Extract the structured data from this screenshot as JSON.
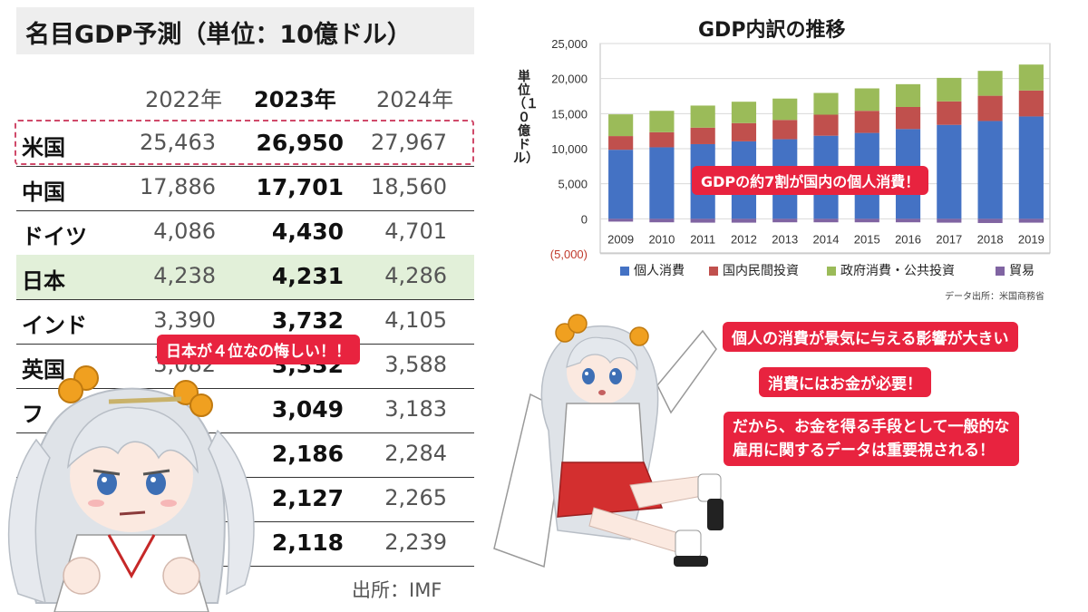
{
  "table": {
    "title": "名目GDP予測（単位：10億ドル）",
    "headers": [
      "2022年",
      "2023年",
      "2024年"
    ],
    "rows": [
      {
        "country": "米国",
        "v2022": "25,463",
        "v2023": "26,950",
        "v2024": "27,967"
      },
      {
        "country": "中国",
        "v2022": "17,886",
        "v2023": "17,701",
        "v2024": "18,560"
      },
      {
        "country": "ドイツ",
        "v2022": "4,086",
        "v2023": "4,430",
        "v2024": "4,701"
      },
      {
        "country": "日本",
        "v2022": "4,238",
        "v2023": "4,231",
        "v2024": "4,286"
      },
      {
        "country": "インド",
        "v2022": "3,390",
        "v2023": "3,732",
        "v2024": "4,105"
      },
      {
        "country": "英国",
        "v2022": "3,082",
        "v2023": "3,332",
        "v2024": "3,588"
      },
      {
        "country": "フ",
        "v2022": "",
        "v2023": "3,049",
        "v2024": "3,183"
      },
      {
        "country": "",
        "v2022": "",
        "v2023": "2,186",
        "v2024": "2,284"
      },
      {
        "country": "",
        "v2022": "",
        "v2023": "2,127",
        "v2024": "2,265"
      },
      {
        "country": "",
        "v2022": "",
        "v2023": "2,118",
        "v2024": "2,239"
      }
    ],
    "source": "出所：IMF"
  },
  "callouts": {
    "japan_rank": "日本が４位なの悔しい！！",
    "gdp_share": "GDPの約7割が国内の個人消費！",
    "consumption_impact": "個人の消費が景気に与える影響が大きい",
    "money_needed": "消費にはお金が必要！",
    "employment_line1": "だから、お金を得る手段として一般的な",
    "employment_line2": "雇用に関するデータは重要視される！"
  },
  "chart_data": {
    "type": "bar",
    "stacked": true,
    "title": "GDP内訳の推移",
    "ylabel": "単位（１０億ドル）",
    "ylim": [
      -5000,
      25000
    ],
    "yticks": [
      "25,000",
      "20,000",
      "15,000",
      "10,000",
      "5,000",
      "0",
      "(5,000)"
    ],
    "categories": [
      "2009",
      "2010",
      "2011",
      "2012",
      "2013",
      "2014",
      "2015",
      "2016",
      "2017",
      "2018",
      "2019"
    ],
    "series": [
      {
        "name": "個人消費",
        "color": "#4472c4",
        "values": [
          9850,
          10200,
          10650,
          11050,
          11350,
          11850,
          12250,
          12800,
          13400,
          13950,
          14600
        ]
      },
      {
        "name": "国内民間投資",
        "color": "#c0504d",
        "values": [
          1950,
          2150,
          2350,
          2600,
          2750,
          3000,
          3150,
          3150,
          3350,
          3600,
          3700
        ]
      },
      {
        "name": "政府消費・公共投資",
        "color": "#9bbb59",
        "values": [
          3100,
          3050,
          3150,
          3050,
          3050,
          3100,
          3200,
          3250,
          3350,
          3550,
          3700
        ]
      },
      {
        "name": "貿易",
        "color": "#8064a2",
        "values": [
          -400,
          -500,
          -550,
          -550,
          -500,
          -500,
          -500,
          -500,
          -550,
          -600,
          -550
        ]
      }
    ],
    "source": "データ出所：米国商務省"
  },
  "colors": {
    "callout_red": "#e8233f",
    "japan_row": "#e2f0d9",
    "usa_frame": "#d04a6a"
  }
}
